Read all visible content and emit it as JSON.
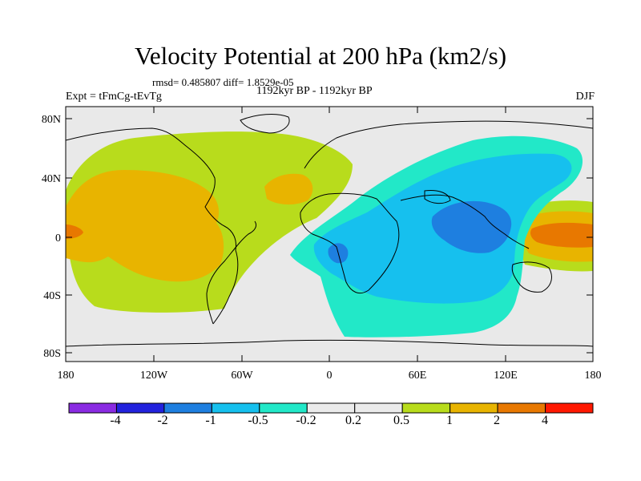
{
  "title": "Velocity Potential at 200 hPa (km2/s)",
  "stats_line": "rmsd= 0.485807 diff= 1.8529e-05",
  "period": "1192kyr BP - 1192kyr BP",
  "experiment": "Expt = tFmCg-tEvTg",
  "season": "DJF",
  "lat_ticks": [
    "80N",
    "40N",
    "0",
    "40S",
    "80S"
  ],
  "lon_ticks": [
    "180",
    "120W",
    "60W",
    "0",
    "60E",
    "120E",
    "180"
  ],
  "colorbar": {
    "labels": [
      "-4",
      "-2",
      "-1",
      "-0.5",
      "-0.2",
      "0.2",
      "0.5",
      "1",
      "2",
      "4"
    ],
    "colors": [
      "#8a2be2",
      "#2222dd",
      "#1e7fe0",
      "#16c0ee",
      "#22e8c8",
      "#ebebeb",
      "#b8dc1c",
      "#e8b400",
      "#e87800",
      "#ff1800"
    ]
  },
  "legend_colors": {
    "ocean_land_background": "#e9e9e9",
    "positive_weak": "#b8dc1c",
    "positive_moderate": "#e8b400",
    "positive_strong": "#e87800",
    "negative_weak": "#22e8c8",
    "negative_moderate": "#16c0ee",
    "negative_strong": "#1e7fe0"
  }
}
